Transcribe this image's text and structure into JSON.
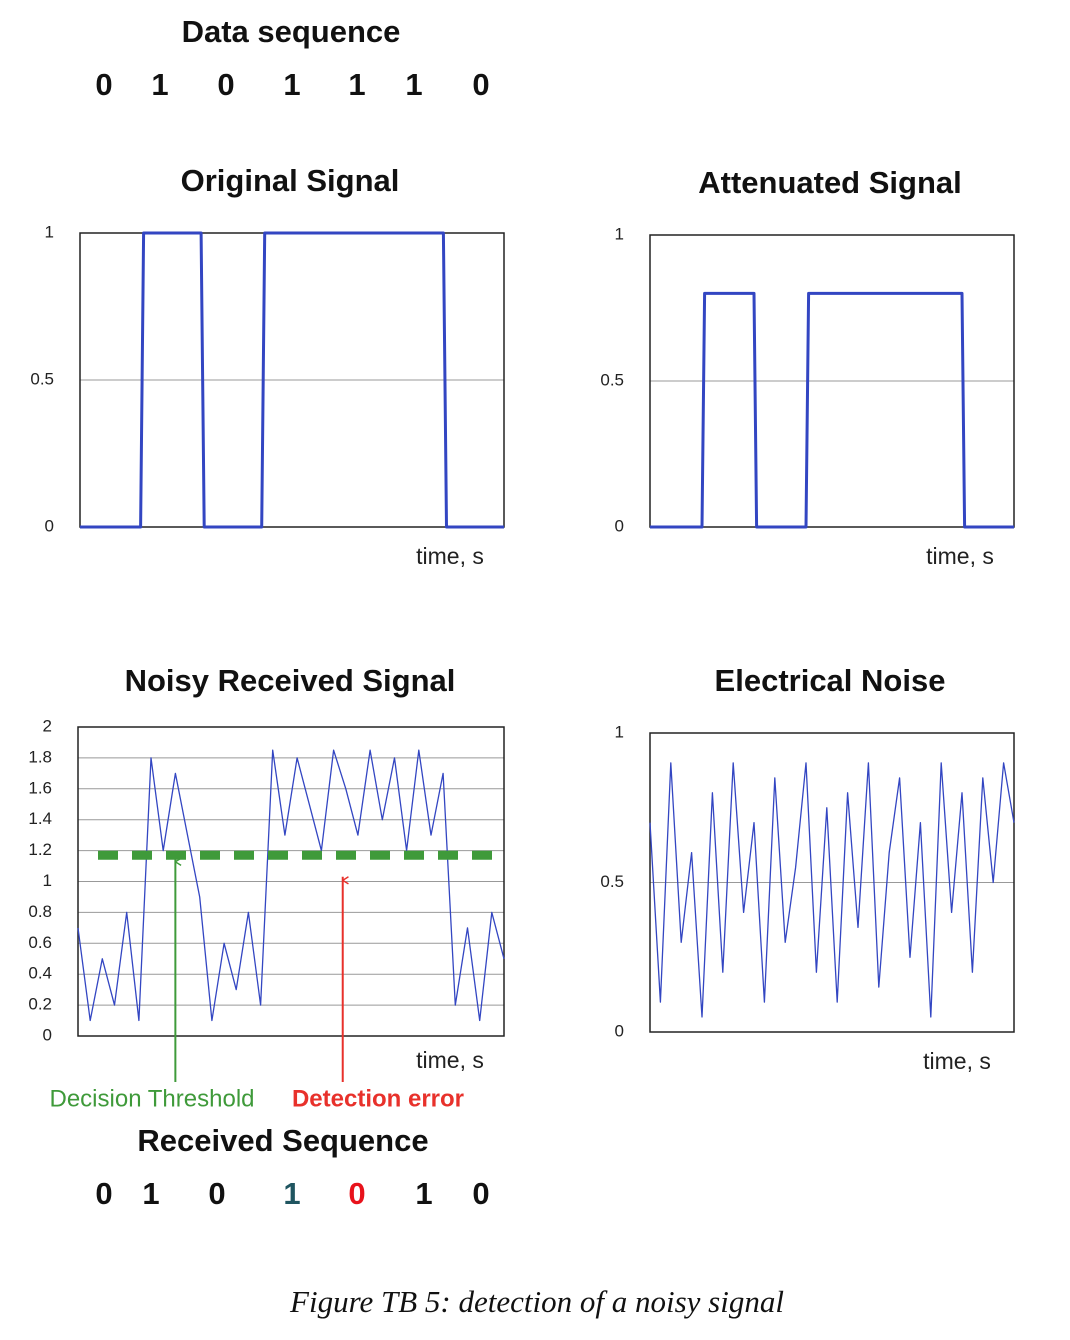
{
  "data_sequence": {
    "title": "Data sequence",
    "digits": [
      "0",
      "1",
      "0",
      "1",
      "1",
      "1",
      "0"
    ]
  },
  "chart_data": [
    {
      "type": "line",
      "title": "Original Signal",
      "x_label": "time, s",
      "color": "#3346c2",
      "line_width": 3,
      "x": [
        0,
        1,
        1.05,
        2,
        2.05,
        3,
        3.05,
        6,
        6.05,
        7
      ],
      "values": [
        0,
        0,
        1,
        1,
        0,
        0,
        1,
        1,
        0,
        0
      ],
      "xlim": [
        0,
        7
      ],
      "ylim": [
        0,
        1
      ],
      "yticks": [
        0,
        0.5,
        1
      ],
      "grid": true
    },
    {
      "type": "line",
      "title": "Attenuated Signal",
      "x_label": "time, s",
      "color": "#3346c2",
      "line_width": 3,
      "x": [
        0,
        1,
        1.05,
        2,
        2.05,
        3,
        3.05,
        6,
        6.05,
        7
      ],
      "values": [
        0,
        0,
        0.8,
        0.8,
        0,
        0,
        0.8,
        0.8,
        0,
        0
      ],
      "xlim": [
        0,
        7
      ],
      "ylim": [
        0,
        1
      ],
      "yticks": [
        0,
        0.5,
        1
      ],
      "grid": true
    },
    {
      "type": "line",
      "title": "Noisy Received Signal",
      "x_label": "time, s",
      "color": "#3346c2",
      "line_width": 1.3,
      "x": [
        0,
        0.2,
        0.4,
        0.6,
        0.8,
        1.0,
        1.2,
        1.4,
        1.6,
        1.8,
        2.0,
        2.2,
        2.4,
        2.6,
        2.8,
        3.0,
        3.2,
        3.4,
        3.6,
        3.8,
        4.0,
        4.2,
        4.4,
        4.6,
        4.8,
        5.0,
        5.2,
        5.4,
        5.6,
        5.8,
        6.0,
        6.2,
        6.4,
        6.6,
        6.8,
        7.0
      ],
      "values": [
        0.7,
        0.1,
        0.5,
        0.2,
        0.8,
        0.1,
        1.8,
        1.2,
        1.7,
        1.3,
        0.9,
        0.1,
        0.6,
        0.3,
        0.8,
        0.2,
        1.85,
        1.3,
        1.8,
        1.5,
        1.2,
        1.85,
        1.6,
        1.3,
        1.85,
        1.4,
        1.8,
        1.2,
        1.85,
        1.3,
        1.7,
        0.2,
        0.7,
        0.1,
        0.8,
        0.5
      ],
      "xlim": [
        0,
        7
      ],
      "ylim": [
        0,
        2
      ],
      "yticks": [
        0,
        0.2,
        0.4,
        0.6,
        0.8,
        1,
        1.2,
        1.4,
        1.6,
        1.8,
        2
      ],
      "grid": true,
      "threshold": {
        "value": 1.17,
        "label": "Decision Threshold",
        "x": 1.6,
        "color": "#3f9a3a"
      },
      "annotations": [
        {
          "text": "Detection error",
          "x": 4.35,
          "y": 1.05,
          "color": "#e8312b"
        }
      ]
    },
    {
      "type": "line",
      "title": "Electrical Noise",
      "x_label": "time, s",
      "color": "#3346c2",
      "line_width": 1.3,
      "x": [
        0,
        0.2,
        0.4,
        0.6,
        0.8,
        1.0,
        1.2,
        1.4,
        1.6,
        1.8,
        2.0,
        2.2,
        2.4,
        2.6,
        2.8,
        3.0,
        3.2,
        3.4,
        3.6,
        3.8,
        4.0,
        4.2,
        4.4,
        4.6,
        4.8,
        5.0,
        5.2,
        5.4,
        5.6,
        5.8,
        6.0,
        6.2,
        6.4,
        6.6,
        6.8,
        7.0
      ],
      "values": [
        0.7,
        0.1,
        0.9,
        0.3,
        0.6,
        0.05,
        0.8,
        0.2,
        0.9,
        0.4,
        0.7,
        0.1,
        0.85,
        0.3,
        0.55,
        0.9,
        0.2,
        0.75,
        0.1,
        0.8,
        0.35,
        0.9,
        0.15,
        0.6,
        0.85,
        0.25,
        0.7,
        0.05,
        0.9,
        0.4,
        0.8,
        0.2,
        0.85,
        0.5,
        0.9,
        0.7
      ],
      "xlim": [
        0,
        7
      ],
      "ylim": [
        0,
        1
      ],
      "yticks": [
        0,
        0.5,
        1
      ],
      "grid": true
    }
  ],
  "received_sequence": {
    "title": "Received Sequence",
    "digits": [
      "0",
      "1",
      "0",
      "1",
      "0",
      "1",
      "0"
    ],
    "digit_colors": [
      "#111111",
      "#111111",
      "#111111",
      "#1f5560",
      "#e8121b",
      "#111111",
      "#111111"
    ]
  },
  "caption": "Figure TB 5: detection of a noisy signal"
}
